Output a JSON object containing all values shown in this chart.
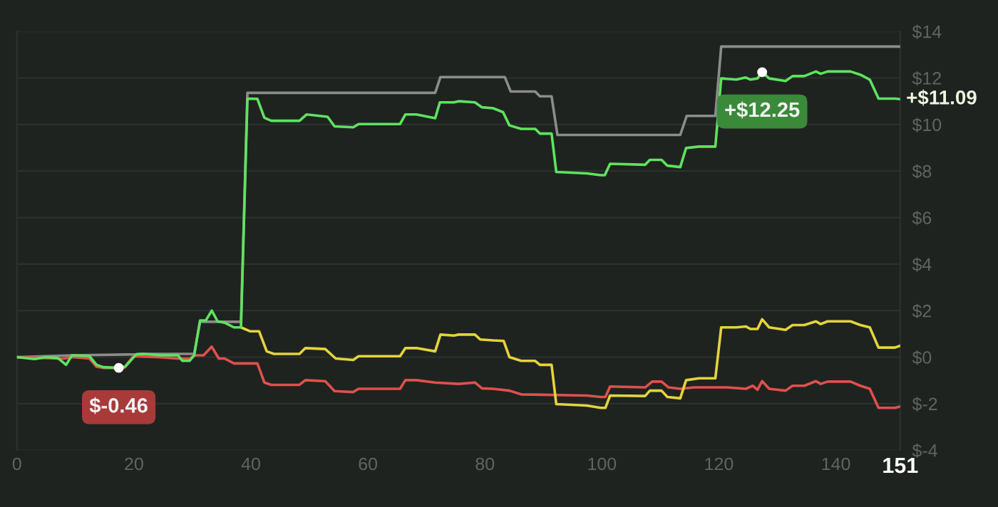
{
  "chart_data": {
    "type": "line",
    "xlim": [
      0,
      151
    ],
    "ylim": [
      -4,
      14
    ],
    "xticks": [
      0,
      20,
      40,
      60,
      80,
      100,
      120,
      140,
      151
    ],
    "yticks": [
      {
        "value": -4,
        "label": "$-4"
      },
      {
        "value": -2,
        "label": "$-2"
      },
      {
        "value": 0,
        "label": "$0"
      },
      {
        "value": 2,
        "label": "$2"
      },
      {
        "value": 4,
        "label": "$4"
      },
      {
        "value": 6,
        "label": "$6"
      },
      {
        "value": 8,
        "label": "$8"
      },
      {
        "value": 10,
        "label": "$10"
      },
      {
        "value": 12,
        "label": "$12"
      },
      {
        "value": 14,
        "label": "$14"
      }
    ],
    "grid": "y",
    "legend": false,
    "marker": "none",
    "line_style": "solid",
    "series": [
      {
        "color": "#8c8c8c",
        "x": [
          0,
          9.4,
          20.4,
          21.5,
          30.3,
          31.3,
          38.3,
          39.4,
          71.5,
          72.4,
          83.4,
          84.4,
          88.6,
          89.4,
          91.4,
          92.4,
          113.4,
          114.5,
          119.4,
          120.4,
          151
        ],
        "values": [
          0,
          0.08,
          0.12,
          0.14,
          0.14,
          1.52,
          1.52,
          11.36,
          11.36,
          12.04,
          12.04,
          11.42,
          11.42,
          11.21,
          11.21,
          9.55,
          9.55,
          10.37,
          10.37,
          13.35,
          13.35
        ]
      },
      {
        "color": "#e0504c",
        "x": [
          0,
          7,
          8,
          9.4,
          12.4,
          13.6,
          14.8,
          18.3,
          19.9,
          23.9,
          27.5,
          29.5,
          30.5,
          31.9,
          33.3,
          34.5,
          35.5,
          37.1,
          41.1,
          42.3,
          43.5,
          48.3,
          49.3,
          52.7,
          54.3,
          57.5,
          58.4,
          65.5,
          66.4,
          68.3,
          71.5,
          75.5,
          78.3,
          79.5,
          81.4,
          84.2,
          86.2,
          97.4,
          99.8,
          100.6,
          101.4,
          107.4,
          108.6,
          110.2,
          111.4,
          113.4,
          115.8,
          121.4,
          124.6,
          125.8,
          126.6,
          127.4,
          128.6,
          131.4,
          132.6,
          134.6,
          136.6,
          137.4,
          138.6,
          142.5,
          144.2,
          145.8,
          147.3,
          150.1,
          151
        ],
        "values": [
          0,
          -0.06,
          -0.06,
          0,
          -0.06,
          -0.41,
          -0.46,
          -0.46,
          0.04,
          0,
          -0.06,
          -0.06,
          0.08,
          0.08,
          0.45,
          -0.06,
          -0.06,
          -0.27,
          -0.27,
          -1.09,
          -1.19,
          -1.19,
          -0.99,
          -1.03,
          -1.46,
          -1.5,
          -1.36,
          -1.36,
          -0.99,
          -0.99,
          -1.09,
          -1.15,
          -1.09,
          -1.34,
          -1.36,
          -1.44,
          -1.6,
          -1.65,
          -1.71,
          -1.71,
          -1.26,
          -1.3,
          -1.05,
          -1.05,
          -1.3,
          -1.36,
          -1.3,
          -1.3,
          -1.36,
          -1.23,
          -1.4,
          -1.03,
          -1.36,
          -1.44,
          -1.23,
          -1.23,
          -1.03,
          -1.15,
          -1.05,
          -1.05,
          -1.23,
          -1.36,
          -2.18,
          -2.18,
          -2.12
        ]
      },
      {
        "color": "#e3d43c",
        "x": [
          38.3,
          39.9,
          41.4,
          42.7,
          43.9,
          48.3,
          49.3,
          52.7,
          54.5,
          57.5,
          58.4,
          65.5,
          66.4,
          68.3,
          71.5,
          72.4,
          74.7,
          75.5,
          78.3,
          79.2,
          81.4,
          83.2,
          84.2,
          86.2,
          88.6,
          89.4,
          91.4,
          92.2,
          97.4,
          99.8,
          100.6,
          101.4,
          107.4,
          108.2,
          110.2,
          111.2,
          113.4,
          114.4,
          116.6,
          119.4,
          120.4,
          123,
          124.6,
          125.4,
          126.6,
          127.4,
          128.6,
          131.4,
          132.6,
          134.6,
          136.6,
          137.4,
          138.6,
          142.5,
          144.2,
          145.8,
          147.3,
          150.1,
          151
        ],
        "values": [
          1.28,
          1.11,
          1.11,
          0.25,
          0.14,
          0.14,
          0.39,
          0.35,
          -0.06,
          -0.12,
          0.04,
          0.04,
          0.39,
          0.39,
          0.25,
          0.97,
          0.93,
          0.97,
          0.97,
          0.76,
          0.72,
          0.7,
          0,
          -0.16,
          -0.16,
          -0.33,
          -0.33,
          -2.02,
          -2.08,
          -2.18,
          -2.18,
          -1.65,
          -1.67,
          -1.44,
          -1.44,
          -1.71,
          -1.77,
          -0.99,
          -0.91,
          -0.91,
          1.28,
          1.28,
          1.32,
          1.21,
          1.21,
          1.63,
          1.28,
          1.17,
          1.38,
          1.38,
          1.54,
          1.42,
          1.54,
          1.54,
          1.38,
          1.28,
          0.41,
          0.41,
          0.49
        ]
      },
      {
        "color": "#5ee35e",
        "x": [
          0,
          3,
          5,
          7,
          8.4,
          9.4,
          12.4,
          13.6,
          14.8,
          17.4,
          18.5,
          20.4,
          21.5,
          24.7,
          27.5,
          28.3,
          29.5,
          30.3,
          31.3,
          32.3,
          33.3,
          34.3,
          35.5,
          37.1,
          38.3,
          39.4,
          41.1,
          42.3,
          43.5,
          48.3,
          49.5,
          53.1,
          54.3,
          57.5,
          58.4,
          65.5,
          66.4,
          68.3,
          71.5,
          72.3,
          74.7,
          75.5,
          78.3,
          79.5,
          81.4,
          83.1,
          84.2,
          86.2,
          88.6,
          89.4,
          91.4,
          92.2,
          97.4,
          99.8,
          100.5,
          101.4,
          107.4,
          108.2,
          110.2,
          111.2,
          113.4,
          114.4,
          116.6,
          119.4,
          120.4,
          123,
          124.6,
          125.4,
          126.6,
          127.4,
          128.6,
          131.4,
          132.6,
          134.6,
          136.6,
          137.4,
          138.6,
          142.5,
          144.2,
          145.8,
          147.3,
          150.1,
          151
        ],
        "values": [
          0,
          -0.08,
          0,
          -0.04,
          -0.33,
          0.08,
          0.04,
          -0.33,
          -0.43,
          -0.46,
          -0.41,
          0.12,
          0.14,
          0.08,
          0.08,
          -0.16,
          -0.16,
          0.08,
          1.58,
          1.58,
          2,
          1.54,
          1.48,
          1.28,
          1.28,
          11.11,
          11.1,
          10.29,
          10.16,
          10.16,
          10.43,
          10.33,
          9.92,
          9.88,
          10.02,
          10.02,
          10.43,
          10.43,
          10.27,
          10.95,
          10.95,
          11,
          10.95,
          10.74,
          10.7,
          10.53,
          9.96,
          9.81,
          9.81,
          9.61,
          9.61,
          7.96,
          7.9,
          7.82,
          7.82,
          8.31,
          8.27,
          8.48,
          8.48,
          8.23,
          8.17,
          8.99,
          9.05,
          9.05,
          11.98,
          11.93,
          12.02,
          11.93,
          11.98,
          12.25,
          11.98,
          11.87,
          12.08,
          12.08,
          12.28,
          12.18,
          12.28,
          12.28,
          12.14,
          11.93,
          11.11,
          11.11,
          11.09
        ]
      }
    ],
    "annotations": [
      {
        "text": "$-0.46",
        "x": 17.4,
        "y": -0.46
      },
      {
        "text": "+$12.25",
        "x": 127.4,
        "y": 12.25
      },
      {
        "text": "+$11.09",
        "x": 151,
        "y": 11.09
      }
    ]
  }
}
